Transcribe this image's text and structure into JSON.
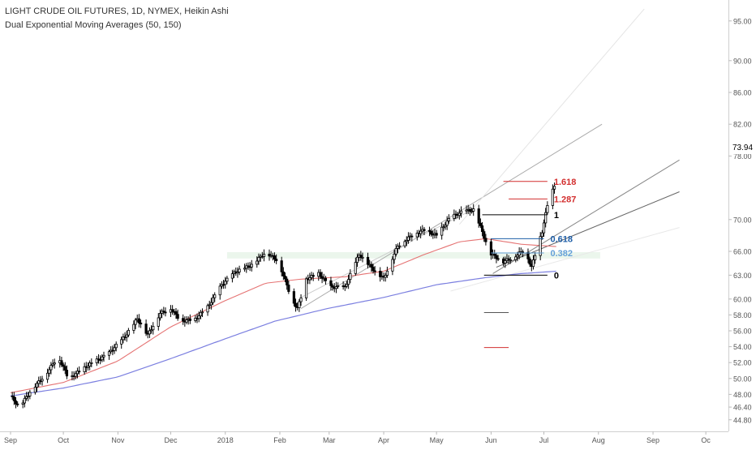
{
  "header": {
    "title": "LIGHT CRUDE OIL FUTURES, 1D, NYMEX, Heikin Ashi",
    "indicator": "Dual Exponential Moving Averages (50, 150)"
  },
  "colors": {
    "candle": "#000000",
    "ema_fast": "#e57373",
    "ema_slow": "#7b7fe0",
    "fib_red": "#d32f2f",
    "fib_blue": "#1f5fa8",
    "fib_lightblue": "#64a0d8",
    "channel": "#9e9e9e",
    "zone": "#e8f5e9"
  },
  "chart_data": {
    "type": "candlestick",
    "title": "LIGHT CRUDE OIL FUTURES, 1D, NYMEX, Heikin Ashi",
    "subtitle": "Dual Exponential Moving Averages (50, 150)",
    "x_axis": {
      "tick_labels": [
        "Sep",
        "Oct",
        "Nov",
        "Dec",
        "2018",
        "Feb",
        "Mar",
        "Apr",
        "May",
        "Jun",
        "Jul",
        "Aug",
        "Sep",
        "Oc"
      ],
      "tick_days": [
        0,
        30,
        61,
        91,
        122,
        153,
        181,
        212,
        242,
        273,
        303,
        334,
        365,
        395
      ]
    },
    "y_axis": {
      "tick_labels": [
        "95.00",
        "90.00",
        "86.00",
        "82.00",
        "78.00",
        "73.94",
        "70.00",
        "66.00",
        "63.00",
        "60.00",
        "58.00",
        "56.00",
        "54.00",
        "52.00",
        "50.00",
        "48.00",
        "46.40",
        "44.80"
      ],
      "range": [
        44.0,
        96.5
      ],
      "last_price": "73.94"
    },
    "price_anchors": [
      [
        0,
        47.8
      ],
      [
        5,
        46.4
      ],
      [
        12,
        48.6
      ],
      [
        20,
        50.5
      ],
      [
        27,
        52.8
      ],
      [
        33,
        50.0
      ],
      [
        45,
        51.8
      ],
      [
        55,
        53.0
      ],
      [
        65,
        55.3
      ],
      [
        72,
        57.5
      ],
      [
        78,
        55.5
      ],
      [
        85,
        58.2
      ],
      [
        91,
        58.8
      ],
      [
        97,
        57.2
      ],
      [
        105,
        57.5
      ],
      [
        112,
        59.0
      ],
      [
        120,
        61.8
      ],
      [
        127,
        63.3
      ],
      [
        137,
        64.3
      ],
      [
        145,
        65.9
      ],
      [
        152,
        64.8
      ],
      [
        160,
        59.9
      ],
      [
        163,
        58.8
      ],
      [
        168,
        62.5
      ],
      [
        175,
        63.2
      ],
      [
        182,
        61.5
      ],
      [
        190,
        61.5
      ],
      [
        198,
        65.6
      ],
      [
        207,
        63.5
      ],
      [
        212,
        62.6
      ],
      [
        220,
        66.7
      ],
      [
        228,
        68.0
      ],
      [
        235,
        68.7
      ],
      [
        242,
        68.0
      ],
      [
        250,
        70.3
      ],
      [
        258,
        71.1
      ],
      [
        263,
        71.2
      ],
      [
        268,
        68.5
      ],
      [
        272,
        65.8
      ],
      [
        280,
        64.7
      ],
      [
        286,
        65.3
      ],
      [
        292,
        66.2
      ],
      [
        296,
        64.0
      ],
      [
        299,
        66.4
      ],
      [
        302,
        68.5
      ],
      [
        305,
        71.8
      ],
      [
        309,
        74.3
      ]
    ],
    "ema_fast_anchors": [
      [
        0,
        48.2
      ],
      [
        30,
        49.5
      ],
      [
        61,
        52.2
      ],
      [
        91,
        56.5
      ],
      [
        122,
        59.8
      ],
      [
        145,
        62.0
      ],
      [
        165,
        62.5
      ],
      [
        190,
        62.8
      ],
      [
        212,
        63.5
      ],
      [
        235,
        65.6
      ],
      [
        255,
        67.2
      ],
      [
        270,
        67.6
      ],
      [
        290,
        66.9
      ],
      [
        310,
        66.6
      ]
    ],
    "ema_slow_anchors": [
      [
        0,
        47.8
      ],
      [
        30,
        48.8
      ],
      [
        61,
        50.2
      ],
      [
        91,
        52.5
      ],
      [
        122,
        55.0
      ],
      [
        150,
        57.2
      ],
      [
        180,
        58.8
      ],
      [
        212,
        60.2
      ],
      [
        242,
        61.8
      ],
      [
        270,
        62.7
      ],
      [
        290,
        63.2
      ],
      [
        310,
        63.5
      ]
    ],
    "fibonacci": [
      {
        "level": "1.618",
        "value": 74.8,
        "color": "#d32f2f"
      },
      {
        "level": "1.287",
        "value": 72.6,
        "color": "#d32f2f"
      },
      {
        "level": "1",
        "value": 70.6,
        "color": "#000000"
      },
      {
        "level": "0.618",
        "value": 67.6,
        "color": "#1f5fa8"
      },
      {
        "level": "0.382",
        "value": 65.8,
        "color": "#64a0d8"
      },
      {
        "level": "0",
        "value": 63.0,
        "color": "#000000"
      }
    ],
    "extra_levels": [
      {
        "value": 58.3,
        "color": "#555555"
      },
      {
        "value": 53.9,
        "color": "#d32f2f"
      }
    ],
    "zone": {
      "from_day": 123,
      "to_day": 335,
      "low": 65.1,
      "high": 65.9
    },
    "trendlines": [
      {
        "from": [
          165,
          58.8
        ],
        "to": [
          336,
          82.0
        ],
        "color": "#aaaaaa"
      },
      {
        "from": [
          274,
          63.2
        ],
        "to": [
          380,
          77.5
        ],
        "color": "#888888"
      },
      {
        "from": [
          276,
          64.0
        ],
        "to": [
          380,
          73.5
        ],
        "color": "#666666"
      },
      {
        "from": [
          165,
          60.2
        ],
        "to": [
          262,
          71.2
        ],
        "color": "#cccccc"
      },
      {
        "from": [
          255,
          69.4
        ],
        "to": [
          360,
          96.5
        ],
        "color": "#e4e4e4"
      },
      {
        "from": [
          250,
          61.0
        ],
        "to": [
          380,
          69.0
        ],
        "color": "#e8e8e8"
      }
    ]
  }
}
